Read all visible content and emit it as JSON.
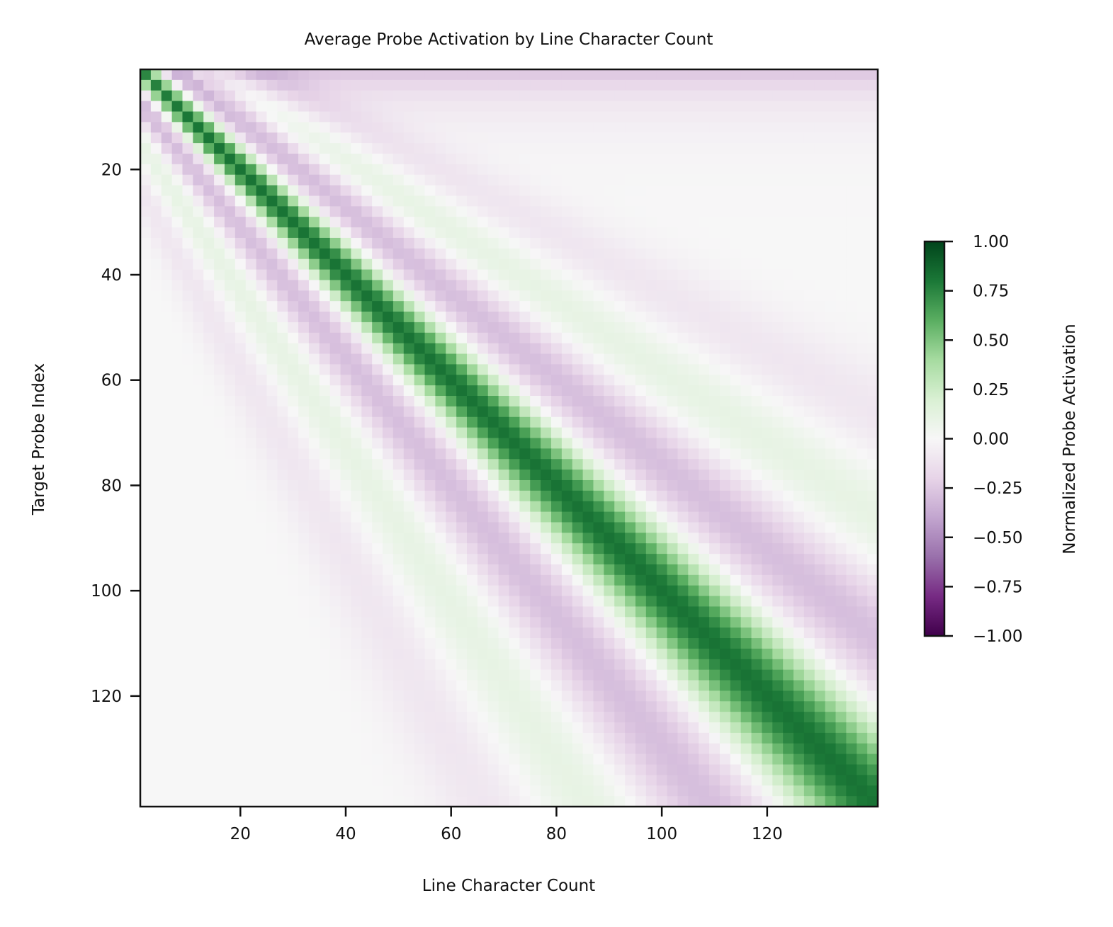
{
  "chart_data": {
    "type": "heatmap",
    "title": "Average Probe Activation by Line Character Count",
    "xlabel": "Line Character Count",
    "ylabel": "Target Probe Index",
    "xlim": [
      1,
      141
    ],
    "ylim": [
      1,
      141
    ],
    "y_inverted": true,
    "grid": false,
    "x_ticks": [
      20,
      40,
      60,
      80,
      100,
      120
    ],
    "x_tick_labels": [
      "20",
      "40",
      "60",
      "80",
      "100",
      "120"
    ],
    "y_ticks": [
      20,
      40,
      60,
      80,
      100,
      120
    ],
    "y_tick_labels": [
      "20",
      "40",
      "60",
      "80",
      "100",
      "120"
    ],
    "colormap": "PRGn",
    "colormap_stops": [
      "#40004b",
      "#762a83",
      "#9970ab",
      "#c2a5cf",
      "#e7d4e8",
      "#f7f7f7",
      "#d9f0d3",
      "#a6dba0",
      "#5aae61",
      "#1b7837",
      "#00441b"
    ],
    "colorbar": {
      "label": "Normalized Probe Activation",
      "range": [
        -1.0,
        1.0
      ],
      "ticks": [
        1.0,
        0.75,
        0.5,
        0.25,
        0.0,
        -0.25,
        -0.5,
        -0.75,
        -1.0
      ],
      "tick_labels": [
        "1.00",
        "0.75",
        "0.50",
        "0.25",
        "0.00",
        "−0.25",
        "−0.50",
        "−0.75",
        "−1.00"
      ]
    },
    "description_of_values": "Value at (character count x, probe index y) is high (≈0.7–0.85, green) along the diagonal x≈y, with a negative purple band (≈−0.3) offset above/below the diagonal and weak oscillating side-lobes further away; top rows (small probe index) are mildly negative (≈−0.35) at large character counts.",
    "approx_profile": {
      "diagonal_peak": 0.82,
      "first_sidelobe": -0.3,
      "second_sidelobe": 0.12,
      "top_row_far_value": -0.38
    }
  }
}
